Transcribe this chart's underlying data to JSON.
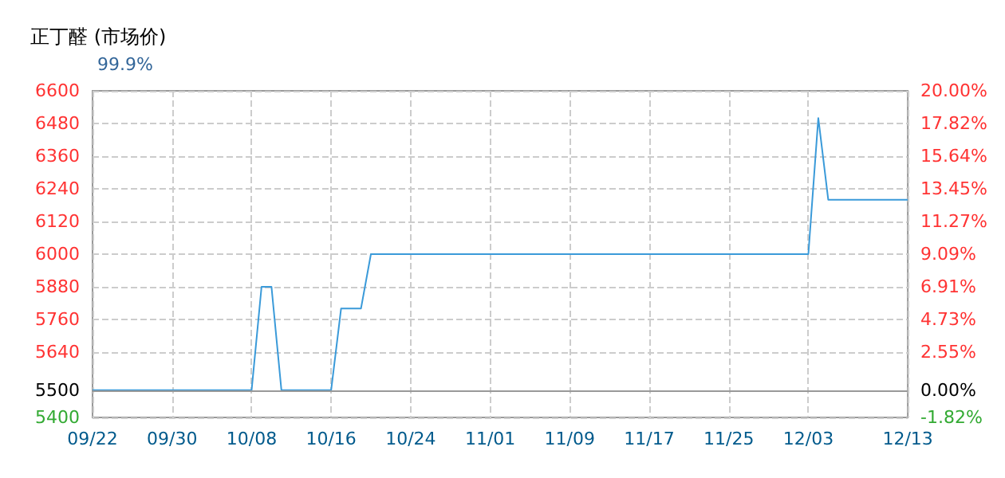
{
  "chart_data": {
    "type": "line",
    "title": "正丁醛 (市场价)",
    "subtitle": "99.9%",
    "x": [
      "--09-22",
      "--10-08",
      "--10-09",
      "--10-10",
      "--10-11",
      "--10-16",
      "--10-17",
      "--10-19",
      "--10-20",
      "--12-03",
      "--12-04",
      "--12-05",
      "--12-13"
    ],
    "series": [
      {
        "color": "#3a9ad9",
        "values": [
          5500,
          5500,
          5880,
          5880,
          5500,
          5500,
          5800,
          5800,
          6000,
          6000,
          6500,
          6200,
          6200
        ]
      }
    ],
    "xlim": [
      "--09-22",
      "--12-13"
    ],
    "xticks": [
      {
        "value": "--09-22",
        "label": "09/22"
      },
      {
        "value": "--09-30",
        "label": "09/30"
      },
      {
        "value": "--10-08",
        "label": "10/08"
      },
      {
        "value": "--10-16",
        "label": "10/16"
      },
      {
        "value": "--10-24",
        "label": "10/24"
      },
      {
        "value": "--11-01",
        "label": "11/01"
      },
      {
        "value": "--11-09",
        "label": "11/09"
      },
      {
        "value": "--11-17",
        "label": "11/17"
      },
      {
        "value": "--11-25",
        "label": "11/25"
      },
      {
        "value": "--12-03",
        "label": "12/03"
      },
      {
        "value": "--12-13",
        "label": "12/13"
      }
    ],
    "ylim": [
      5400,
      6600
    ],
    "yticks": [
      5400,
      5500,
      5640,
      5760,
      5880,
      6000,
      6120,
      6240,
      6360,
      6480,
      6600
    ],
    "y2lim": [
      -1.82,
      20
    ],
    "y2ticks": [
      {
        "value": -1.82,
        "label": "-1.82%"
      },
      {
        "value": 0,
        "label": "0.00%"
      },
      {
        "value": 2.55,
        "label": "2.55%"
      },
      {
        "value": 4.73,
        "label": "4.73%"
      },
      {
        "value": 6.91,
        "label": "6.91%"
      },
      {
        "value": 9.09,
        "label": "9.09%"
      },
      {
        "value": 11.27,
        "label": "11.27%"
      },
      {
        "value": 13.45,
        "label": "13.45%"
      },
      {
        "value": 15.64,
        "label": "15.64%"
      },
      {
        "value": 17.82,
        "label": "17.82%"
      },
      {
        "value": 20,
        "label": "20.00%"
      }
    ],
    "ref_lines": [
      {
        "axis": "y",
        "value": 5500,
        "color": "#999999"
      }
    ],
    "grid": true,
    "marker": "none",
    "line_style": "solid"
  }
}
